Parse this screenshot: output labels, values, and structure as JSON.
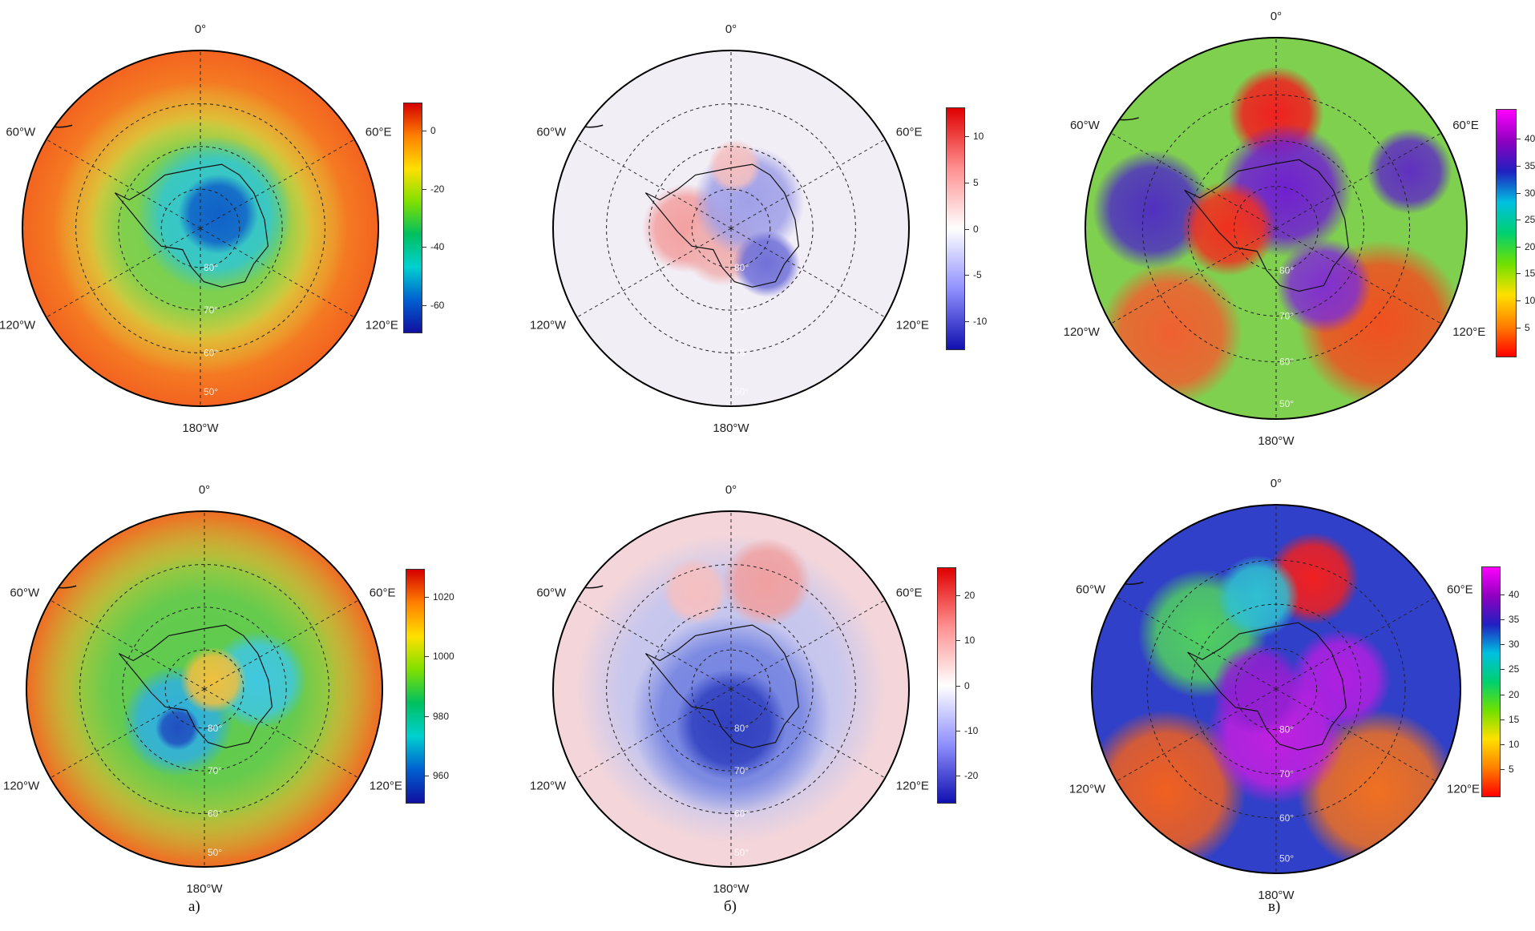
{
  "meridian_labels": {
    "top": "0°",
    "bottom": "180°W",
    "upper_left": "60°W",
    "upper_right": "60°E",
    "lower_left": "120°W",
    "lower_right": "120°E"
  },
  "latitude_labels": [
    "80°",
    "70°",
    "60°",
    "50°"
  ],
  "captions": [
    "а)",
    "б)",
    "в)"
  ],
  "colorbars": [
    {
      "ticks": [
        "0",
        "-20",
        "-40",
        "-60"
      ],
      "colors": [
        "#d40000",
        "#ff8000",
        "#ffe000",
        "#80e000",
        "#00c060",
        "#00d0d0",
        "#0060d0",
        "#1010a0"
      ]
    },
    {
      "ticks": [
        "10",
        "5",
        "0",
        "-5",
        "-10"
      ],
      "colors": [
        "#e00000",
        "#ff9090",
        "#ffffff",
        "#9090ff",
        "#1010b0"
      ]
    },
    {
      "ticks": [
        "40",
        "35",
        "30",
        "25",
        "20",
        "15",
        "10",
        "5"
      ],
      "colors": [
        "#ff00ff",
        "#9000c0",
        "#2020c0",
        "#00c0e0",
        "#00d070",
        "#70e000",
        "#ffe000",
        "#ff8000",
        "#ff0000"
      ]
    },
    {
      "ticks": [
        "1020",
        "1000",
        "980",
        "960"
      ],
      "colors": [
        "#d40000",
        "#ff8000",
        "#ffe000",
        "#80e000",
        "#00c060",
        "#00d0d0",
        "#0060d0",
        "#1010a0"
      ]
    },
    {
      "ticks": [
        "20",
        "10",
        "0",
        "-10",
        "-20"
      ],
      "colors": [
        "#e00000",
        "#ff9090",
        "#ffffff",
        "#9090ff",
        "#1010b0"
      ]
    },
    {
      "ticks": [
        "40",
        "35",
        "30",
        "25",
        "20",
        "15",
        "10",
        "5"
      ],
      "colors": [
        "#ff00ff",
        "#9000c0",
        "#2020c0",
        "#00c0e0",
        "#00d070",
        "#70e000",
        "#ffe000",
        "#ff8000",
        "#ff0000"
      ]
    }
  ],
  "map_fills": [
    {
      "base": "#f25a1e",
      "blobs": [
        {
          "r": 0.86,
          "c": "#f58a25"
        },
        {
          "r": 0.66,
          "c": "#d6d640"
        },
        {
          "r": 0.5,
          "c": "#70d050"
        },
        {
          "dx": 0.08,
          "dy": -0.08,
          "r": 0.35,
          "c": "#30c6d4"
        },
        {
          "dx": 0.1,
          "dy": -0.08,
          "r": 0.18,
          "c": "#1060c8"
        }
      ]
    },
    {
      "base": "#f2eef6",
      "blobs": [
        {
          "dx": -0.25,
          "dy": 0.0,
          "r": 0.2,
          "c": "#f3a0a0"
        },
        {
          "dx": -0.05,
          "dy": 0.1,
          "r": 0.18,
          "c": "#f0b0b0"
        },
        {
          "dx": 0.1,
          "dy": -0.15,
          "r": 0.25,
          "c": "#a0a0e8"
        },
        {
          "dx": 0.2,
          "dy": 0.2,
          "r": 0.15,
          "c": "#7070d8"
        },
        {
          "dx": 0.02,
          "dy": -0.35,
          "r": 0.12,
          "c": "#f5c0c0"
        }
      ]
    },
    {
      "base": "#80d050",
      "blobs": [
        {
          "dx": 0.0,
          "dy": -0.6,
          "r": 0.2,
          "c": "#f02020"
        },
        {
          "dx": 0.55,
          "dy": 0.5,
          "r": 0.35,
          "c": "#f05020"
        },
        {
          "dx": -0.55,
          "dy": 0.55,
          "r": 0.3,
          "c": "#f06030"
        },
        {
          "dx": -0.65,
          "dy": -0.1,
          "r": 0.25,
          "c": "#5030c0"
        },
        {
          "dx": 0.05,
          "dy": -0.2,
          "r": 0.28,
          "c": "#7020d0"
        },
        {
          "dx": 0.25,
          "dy": 0.3,
          "r": 0.2,
          "c": "#8030d0"
        },
        {
          "dx": -0.25,
          "dy": 0.0,
          "r": 0.2,
          "c": "#f03020"
        },
        {
          "dx": 0.7,
          "dy": -0.3,
          "r": 0.18,
          "c": "#6030c0"
        }
      ]
    },
    {
      "base": "#e85a20",
      "blobs": [
        {
          "r": 0.9,
          "c": "#f0a030"
        },
        {
          "r": 0.78,
          "c": "#9ad040"
        },
        {
          "r": 0.6,
          "c": "#5acb50"
        },
        {
          "dx": -0.15,
          "dy": 0.18,
          "r": 0.25,
          "c": "#30b0e0"
        },
        {
          "dx": -0.15,
          "dy": 0.22,
          "r": 0.1,
          "c": "#2050c0"
        },
        {
          "dx": 0.3,
          "dy": -0.05,
          "r": 0.22,
          "c": "#40c8e0"
        },
        {
          "dx": 0.05,
          "dy": -0.05,
          "r": 0.15,
          "c": "#f0c040"
        }
      ]
    },
    {
      "base": "#f4d6da",
      "blobs": [
        {
          "r": 0.7,
          "c": "#c0c4f0"
        },
        {
          "dx": 0.0,
          "dy": 0.15,
          "r": 0.45,
          "c": "#7080e0"
        },
        {
          "dx": 0.0,
          "dy": 0.2,
          "r": 0.25,
          "c": "#3040c0"
        },
        {
          "dx": 0.2,
          "dy": -0.6,
          "r": 0.2,
          "c": "#f0a0a0"
        },
        {
          "dx": -0.2,
          "dy": -0.55,
          "r": 0.15,
          "c": "#f6c0c0"
        }
      ]
    },
    {
      "base": "#3040c8",
      "blobs": [
        {
          "dx": -0.6,
          "dy": 0.55,
          "r": 0.35,
          "c": "#f06020"
        },
        {
          "dx": 0.55,
          "dy": 0.55,
          "r": 0.35,
          "c": "#f07020"
        },
        {
          "dx": 0.2,
          "dy": -0.6,
          "r": 0.2,
          "c": "#f02020"
        },
        {
          "dx": -0.4,
          "dy": -0.3,
          "r": 0.28,
          "c": "#50d060"
        },
        {
          "dx": -0.1,
          "dy": -0.5,
          "r": 0.18,
          "c": "#30c0d0"
        },
        {
          "dx": 0.0,
          "dy": 0.25,
          "r": 0.3,
          "c": "#c020e0"
        },
        {
          "dx": 0.35,
          "dy": -0.05,
          "r": 0.22,
          "c": "#b020e0"
        },
        {
          "dx": -0.1,
          "dy": 0.0,
          "r": 0.2,
          "c": "#9020d0"
        }
      ]
    }
  ]
}
